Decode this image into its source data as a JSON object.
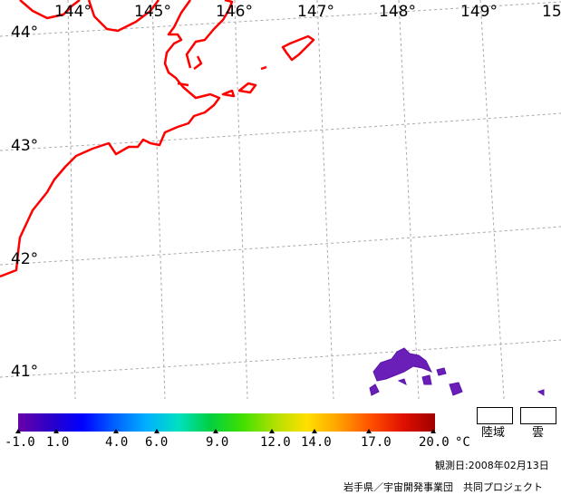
{
  "map": {
    "longitude_labels": [
      "144°",
      "145°",
      "146°",
      "147°",
      "148°",
      "149°",
      "15"
    ],
    "latitude_labels": [
      "44°",
      "43°",
      "42°",
      "41°"
    ],
    "coastline_color": "#ff0000",
    "grid_color": "#aaaaaa",
    "grid_style": "dashed",
    "legend": {
      "ticks": [
        "-1.0",
        "1.0",
        "4.0",
        "6.0",
        "9.0",
        "12.0",
        "14.0",
        "17.0",
        "20.0"
      ],
      "unit": "°C",
      "colors": [
        "#6a00a8",
        "#2b00c8",
        "#0000ff",
        "#0060ff",
        "#00b0ff",
        "#00e0c0",
        "#00d040",
        "#40e000",
        "#b0e000",
        "#ffe000",
        "#ffa000",
        "#ff5000",
        "#e01000",
        "#a00000"
      ],
      "land_label": "陸域",
      "cloud_label": "雲"
    },
    "observation_date": "観測日:2008年02月13日",
    "credit": "岩手県／宇宙開発事業団　共同プロジェクト"
  }
}
